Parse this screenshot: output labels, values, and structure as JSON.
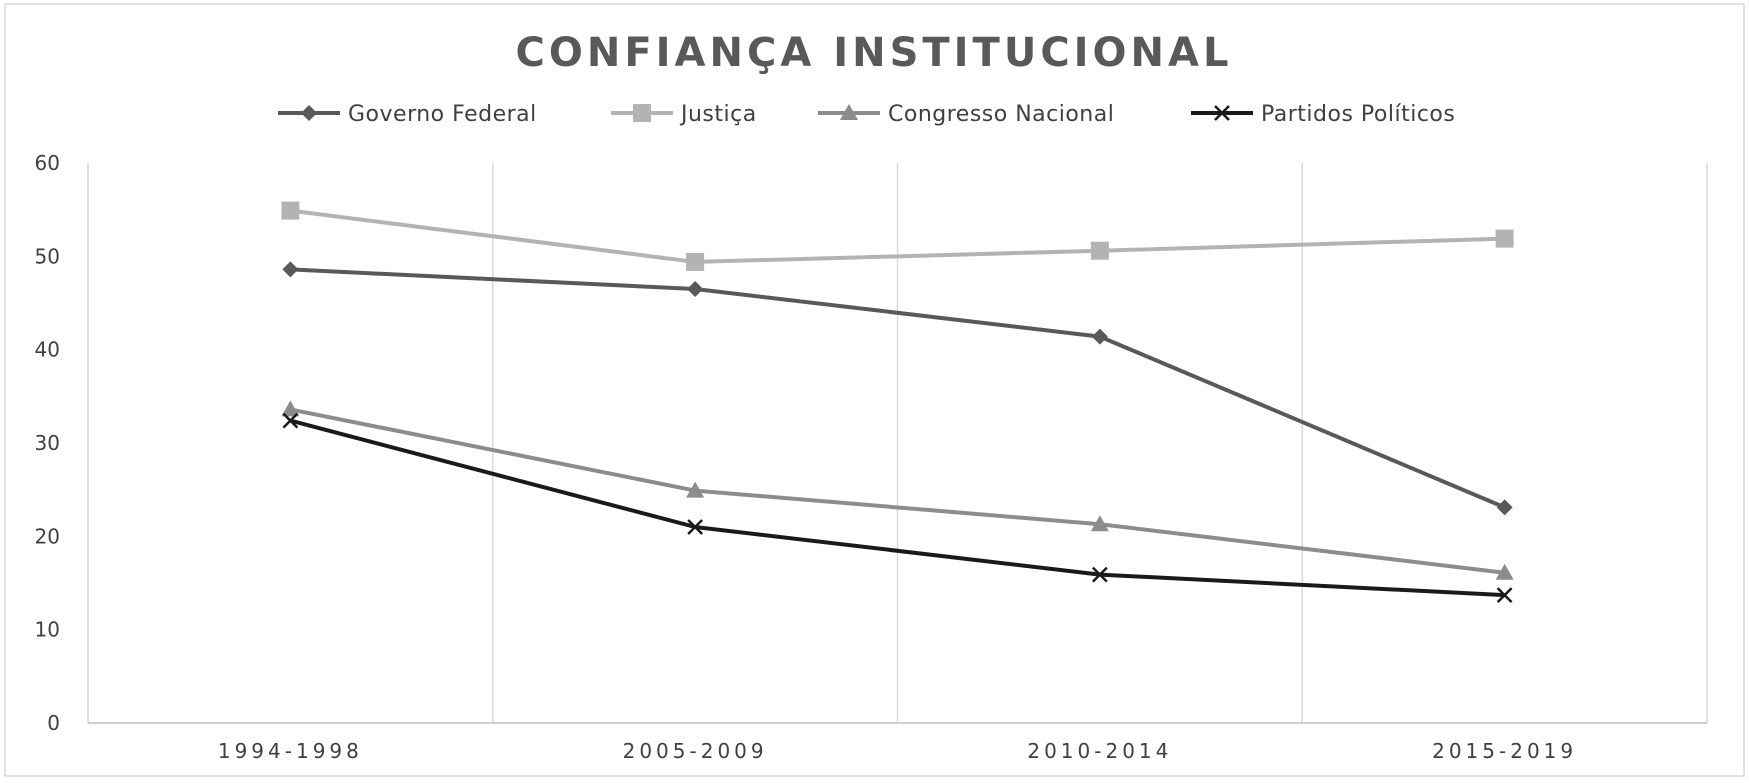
{
  "chart_data": {
    "type": "line",
    "title": "CONFIANÇA INSTITUCIONAL",
    "xlabel": "",
    "ylabel": "",
    "categories": [
      "1994-1998",
      "2005-2009",
      "2010-2014",
      "2015-2019"
    ],
    "ylim": [
      0,
      60
    ],
    "yticks": [
      0,
      10,
      20,
      30,
      40,
      50,
      60
    ],
    "grid": "vertical",
    "legend_position": "top",
    "series": [
      {
        "name": "Governo Federal",
        "values": [
          48.6,
          46.5,
          41.4,
          23.1
        ],
        "color": "#595959",
        "marker": "diamond"
      },
      {
        "name": "Justiça",
        "values": [
          54.9,
          49.4,
          50.6,
          51.9
        ],
        "color": "#b3b3b3",
        "marker": "square"
      },
      {
        "name": "Congresso Nacional",
        "values": [
          33.6,
          24.9,
          21.3,
          16.1
        ],
        "color": "#8c8c8c",
        "marker": "triangle"
      },
      {
        "name": "Partidos Políticos",
        "values": [
          32.4,
          21.0,
          15.9,
          13.7
        ],
        "color": "#1a1a1a",
        "marker": "x"
      }
    ]
  }
}
